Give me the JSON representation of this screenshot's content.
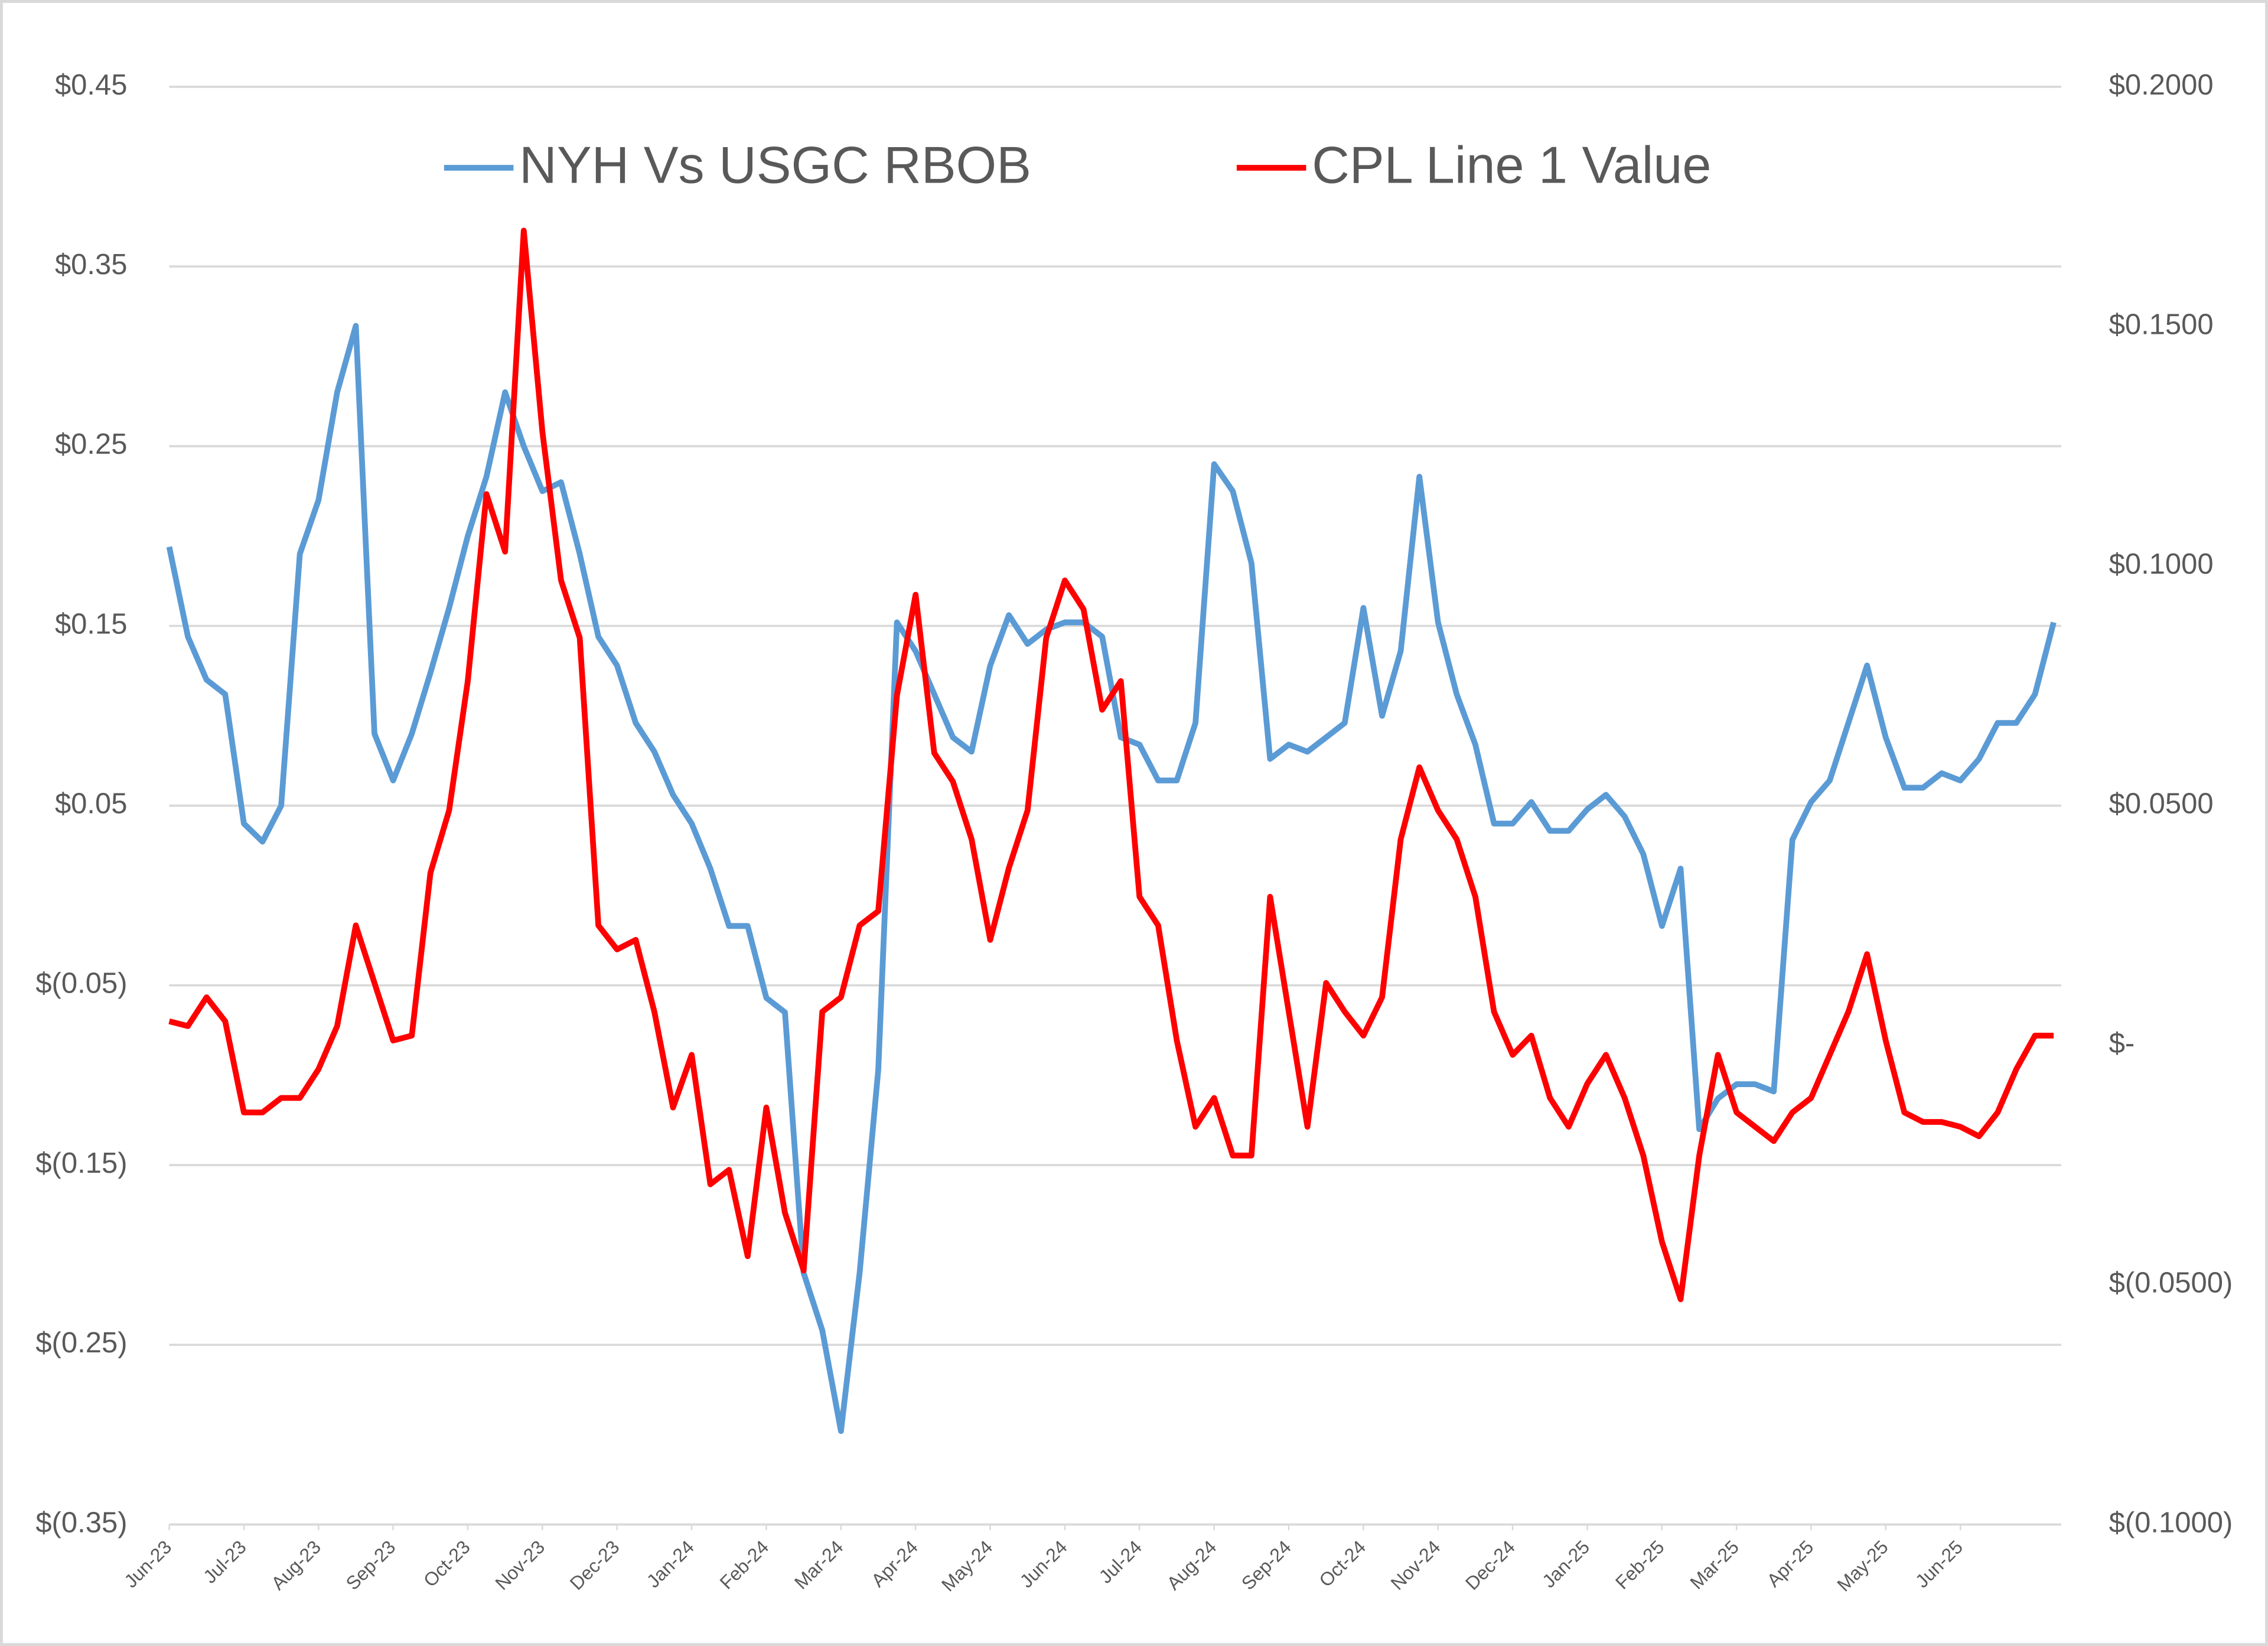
{
  "chart_data": {
    "type": "line",
    "x": [
      0,
      0.25,
      0.5,
      0.75,
      1,
      1.25,
      1.5,
      1.75,
      2,
      2.25,
      2.5,
      2.75,
      3,
      3.25,
      3.5,
      3.75,
      4,
      4.25,
      4.5,
      4.75,
      5,
      5.25,
      5.5,
      5.75,
      6,
      6.25,
      6.5,
      6.75,
      7,
      7.25,
      7.5,
      7.75,
      8,
      8.25,
      8.5,
      8.75,
      9,
      9.25,
      9.5,
      9.75,
      10,
      10.25,
      10.5,
      10.75,
      11,
      11.25,
      11.5,
      11.75,
      12,
      12.25,
      12.5,
      12.75,
      13,
      13.25,
      13.5,
      13.75,
      14,
      14.25,
      14.5,
      14.75,
      15,
      15.25,
      15.5,
      15.75,
      16,
      16.25,
      16.5,
      16.75,
      17,
      17.25,
      17.5,
      17.75,
      18,
      18.25,
      18.5,
      18.75,
      19,
      19.25,
      19.5,
      19.75,
      20,
      20.25,
      20.5,
      20.75,
      21,
      21.25,
      21.5,
      21.75,
      22,
      22.25,
      22.5,
      22.75,
      23,
      23.25,
      23.5,
      23.75,
      24,
      24.25,
      24.5,
      24.75,
      25,
      25.25
    ],
    "xlim": [
      0,
      25.35
    ],
    "xticks": [
      {
        "value": 0,
        "label": "Jun-23"
      },
      {
        "value": 1,
        "label": "Jul-23"
      },
      {
        "value": 2,
        "label": "Aug-23"
      },
      {
        "value": 3,
        "label": "Sep-23"
      },
      {
        "value": 4,
        "label": "Oct-23"
      },
      {
        "value": 5,
        "label": "Nov-23"
      },
      {
        "value": 6,
        "label": "Dec-23"
      },
      {
        "value": 7,
        "label": "Jan-24"
      },
      {
        "value": 8,
        "label": "Feb-24"
      },
      {
        "value": 9,
        "label": "Mar-24"
      },
      {
        "value": 10,
        "label": "Apr-24"
      },
      {
        "value": 11,
        "label": "May-24"
      },
      {
        "value": 12,
        "label": "Jun-24"
      },
      {
        "value": 13,
        "label": "Jul-24"
      },
      {
        "value": 14,
        "label": "Aug-24"
      },
      {
        "value": 15,
        "label": "Sep-24"
      },
      {
        "value": 16,
        "label": "Oct-24"
      },
      {
        "value": 17,
        "label": "Nov-24"
      },
      {
        "value": 18,
        "label": "Dec-24"
      },
      {
        "value": 19,
        "label": "Jan-25"
      },
      {
        "value": 20,
        "label": "Feb-25"
      },
      {
        "value": 21,
        "label": "Mar-25"
      },
      {
        "value": 22,
        "label": "Apr-25"
      },
      {
        "value": 23,
        "label": "May-25"
      },
      {
        "value": 24,
        "label": "Jun-25"
      }
    ],
    "ylim": [
      -0.35,
      0.45
    ],
    "yticks": [
      {
        "value": 0.45,
        "label": "$0.45"
      },
      {
        "value": 0.35,
        "label": "$0.35"
      },
      {
        "value": 0.25,
        "label": "$0.25"
      },
      {
        "value": 0.15,
        "label": "$0.15"
      },
      {
        "value": 0.05,
        "label": "$0.05"
      },
      {
        "value": -0.05,
        "label": "$(0.05)"
      },
      {
        "value": -0.15,
        "label": "$(0.15)"
      },
      {
        "value": -0.25,
        "label": "$(0.25)"
      },
      {
        "value": -0.35,
        "label": "$(0.35)"
      }
    ],
    "y2lim": [
      -0.1,
      0.2
    ],
    "y2ticks": [
      {
        "value": 0.2,
        "label": "$0.2000"
      },
      {
        "value": 0.15,
        "label": "$0.1500"
      },
      {
        "value": 0.1,
        "label": "$0.1000"
      },
      {
        "value": 0.05,
        "label": "$0.0500"
      },
      {
        "value": 0,
        "label": "$-"
      },
      {
        "value": -0.05,
        "label": "$(0.0500)"
      },
      {
        "value": -0.1,
        "label": "$(0.1000)"
      }
    ],
    "grid": true,
    "legend": "top",
    "series": [
      {
        "name": "NYH Vs USGC RBOB",
        "color": "#5b9bd5",
        "axis": "y",
        "values": [
          0.194,
          0.144,
          0.12,
          0.112,
          0.04,
          0.03,
          0.05,
          0.19,
          0.22,
          0.28,
          0.317,
          0.09,
          0.064,
          0.09,
          0.124,
          0.16,
          0.2,
          0.233,
          0.28,
          0.25,
          0.225,
          0.23,
          0.19,
          0.144,
          0.128,
          0.096,
          0.08,
          0.056,
          0.04,
          0.015,
          -0.017,
          -0.017,
          -0.057,
          -0.065,
          -0.21,
          -0.242,
          -0.298,
          -0.21,
          -0.097,
          0.152,
          0.136,
          0.112,
          0.088,
          0.08,
          0.128,
          0.156,
          0.14,
          0.148,
          0.152,
          0.152,
          0.144,
          0.088,
          0.084,
          0.064,
          0.064,
          0.096,
          0.24,
          0.225,
          0.185,
          0.076,
          0.084,
          0.08,
          0.088,
          0.096,
          0.16,
          0.1,
          0.136,
          0.233,
          0.152,
          0.112,
          0.084,
          0.04,
          0.04,
          0.052,
          0.036,
          0.036,
          0.048,
          0.056,
          0.044,
          0.023,
          -0.017,
          0.015,
          -0.13,
          -0.113,
          -0.105,
          -0.105,
          -0.109,
          0.031,
          0.052,
          0.064,
          0.096,
          0.128,
          0.088,
          0.06,
          0.06,
          0.068,
          0.064,
          0.076,
          0.096,
          0.096,
          0.112,
          0.152
        ]
      },
      {
        "name": "CPL Line 1 Value",
        "color": "#ff0000",
        "axis": "y2",
        "values": [
          0.005,
          0.004,
          0.01,
          0.005,
          -0.014,
          -0.014,
          -0.011,
          -0.011,
          -0.005,
          0.004,
          0.025,
          0.013,
          0.001,
          0.002,
          0.036,
          0.049,
          0.076,
          0.115,
          0.103,
          0.17,
          0.128,
          0.097,
          0.085,
          0.025,
          0.02,
          0.022,
          0.007,
          -0.013,
          -0.002,
          -0.029,
          -0.026,
          -0.044,
          -0.013,
          -0.035,
          -0.047,
          0.007,
          0.01,
          0.025,
          0.028,
          0.073,
          0.094,
          0.061,
          0.055,
          0.043,
          0.022,
          0.037,
          0.049,
          0.085,
          0.097,
          0.091,
          0.07,
          0.076,
          0.031,
          0.025,
          0.001,
          -0.017,
          -0.011,
          -0.023,
          -0.023,
          0.031,
          0.007,
          -0.017,
          0.013,
          0.007,
          0.002,
          0.01,
          0.043,
          0.058,
          0.049,
          0.043,
          0.031,
          0.007,
          -0.002,
          0.002,
          -0.011,
          -0.017,
          -0.008,
          -0.002,
          -0.011,
          -0.023,
          -0.041,
          -0.053,
          -0.023,
          -0.002,
          -0.014,
          -0.017,
          -0.02,
          -0.014,
          -0.011,
          -0.002,
          0.007,
          0.019,
          0.001,
          -0.014,
          -0.016,
          -0.016,
          -0.017,
          -0.019,
          -0.014,
          -0.005,
          0.002,
          0.002
        ]
      }
    ]
  }
}
